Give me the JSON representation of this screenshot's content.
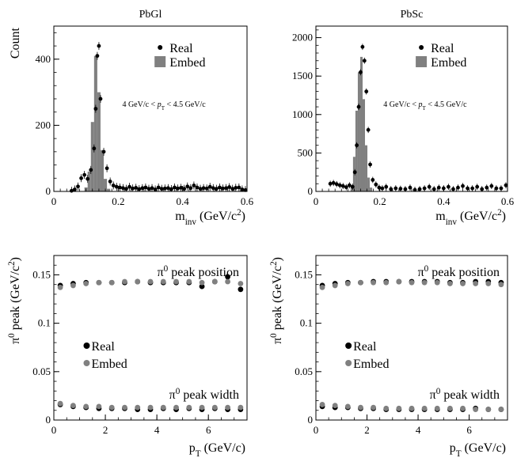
{
  "colors": {
    "real": "#000000",
    "embed": "#808080",
    "axis": "#000000",
    "background": "#ffffff"
  },
  "chart_data": [
    {
      "type": "scatter",
      "subtype": "histogram-with-points",
      "title": "PbGl",
      "xlabel": "m_inv (GeV/c^2)",
      "ylabel": "Count",
      "xlim": [
        0,
        0.6
      ],
      "ylim": [
        0,
        500
      ],
      "xticks": [
        0,
        0.2,
        0.4,
        0.6
      ],
      "xtick_labels": [
        "0",
        "0.2",
        "0.4",
        "0.6"
      ],
      "yticks": [
        0,
        200,
        400
      ],
      "ytick_labels": [
        "0",
        "200",
        "400"
      ],
      "legend": {
        "position": "top-right",
        "entries": [
          "Real",
          "Embed"
        ]
      },
      "annotation": "4 GeV/c < pT < 4.5 GeV/c",
      "series": [
        {
          "name": "Embed",
          "kind": "histogram",
          "bin_width": 0.01,
          "x": [
            0.1,
            0.11,
            0.12,
            0.13,
            0.14,
            0.15,
            0.16,
            0.17
          ],
          "values": [
            12,
            60,
            210,
            410,
            300,
            125,
            38,
            8
          ]
        },
        {
          "name": "Real",
          "kind": "points",
          "x": [
            0.055,
            0.065,
            0.075,
            0.085,
            0.095,
            0.105,
            0.115,
            0.125,
            0.13,
            0.135,
            0.14,
            0.145,
            0.155,
            0.165,
            0.175,
            0.185,
            0.195,
            0.205,
            0.215,
            0.225,
            0.235,
            0.245,
            0.255,
            0.265,
            0.275,
            0.285,
            0.295,
            0.305,
            0.315,
            0.325,
            0.335,
            0.345,
            0.355,
            0.365,
            0.375,
            0.385,
            0.395,
            0.405,
            0.415,
            0.425,
            0.435,
            0.445,
            0.455,
            0.465,
            0.475,
            0.485,
            0.495,
            0.505,
            0.515,
            0.525,
            0.535,
            0.545,
            0.555,
            0.565,
            0.575,
            0.585,
            0.595
          ],
          "y": [
            2,
            6,
            15,
            40,
            50,
            38,
            65,
            130,
            250,
            410,
            440,
            280,
            120,
            70,
            30,
            18,
            14,
            12,
            10,
            8,
            14,
            9,
            11,
            7,
            10,
            12,
            8,
            10,
            6,
            12,
            8,
            9,
            10,
            7,
            12,
            9,
            11,
            8,
            15,
            10,
            18,
            12,
            8,
            10,
            9,
            14,
            10,
            8,
            12,
            9,
            10,
            13,
            8,
            11,
            12,
            6,
            4
          ],
          "error": 12
        }
      ]
    },
    {
      "type": "scatter",
      "subtype": "histogram-with-points",
      "title": "PbSc",
      "xlabel": "m_inv (GeV/c^2)",
      "ylabel": "",
      "xlim": [
        0,
        0.6
      ],
      "ylim": [
        0,
        2150
      ],
      "xticks": [
        0,
        0.2,
        0.4,
        0.6
      ],
      "xtick_labels": [
        "0",
        "0.2",
        "0.4",
        "0.6"
      ],
      "yticks": [
        0,
        500,
        1000,
        1500,
        2000
      ],
      "ytick_labels": [
        "0",
        "500",
        "1000",
        "1500",
        "2000"
      ],
      "legend": {
        "position": "top-right",
        "entries": [
          "Real",
          "Embed"
        ]
      },
      "annotation": "4 GeV/c < pT < 4.5 GeV/c",
      "series": [
        {
          "name": "Embed",
          "kind": "histogram",
          "bin_width": 0.0075,
          "x": [
            0.1125,
            0.12,
            0.1275,
            0.135,
            0.1425,
            0.15,
            0.1575,
            0.165,
            0.1725
          ],
          "values": [
            60,
            450,
            1050,
            1550,
            1750,
            1200,
            600,
            180,
            50
          ]
        },
        {
          "name": "Real",
          "kind": "points",
          "x": [
            0.045,
            0.055,
            0.065,
            0.075,
            0.085,
            0.095,
            0.105,
            0.115,
            0.122,
            0.128,
            0.134,
            0.14,
            0.146,
            0.152,
            0.158,
            0.164,
            0.17,
            0.178,
            0.188,
            0.198,
            0.208,
            0.22,
            0.235,
            0.25,
            0.265,
            0.28,
            0.295,
            0.31,
            0.325,
            0.34,
            0.355,
            0.37,
            0.385,
            0.4,
            0.415,
            0.43,
            0.445,
            0.46,
            0.475,
            0.49,
            0.505,
            0.52,
            0.535,
            0.55,
            0.565,
            0.58,
            0.595
          ],
          "y": [
            100,
            110,
            95,
            80,
            70,
            55,
            80,
            60,
            250,
            600,
            1100,
            1550,
            1880,
            1700,
            1300,
            800,
            350,
            150,
            90,
            50,
            40,
            60,
            30,
            40,
            35,
            30,
            50,
            20,
            30,
            40,
            60,
            30,
            50,
            40,
            60,
            30,
            50,
            70,
            40,
            40,
            60,
            30,
            50,
            70,
            40,
            40,
            80
          ],
          "error": 40
        }
      ]
    },
    {
      "type": "scatter",
      "title": "",
      "xlabel": "p_T (GeV/c)",
      "ylabel": "π^0 peak (GeV/c^2)",
      "xlim": [
        0,
        7.5
      ],
      "ylim": [
        0,
        0.17
      ],
      "xticks": [
        0,
        2,
        4,
        6
      ],
      "xtick_labels": [
        "0",
        "2",
        "4",
        "6"
      ],
      "yticks": [
        0,
        0.05,
        0.1,
        0.15
      ],
      "ytick_labels": [
        "0",
        "0.05",
        "0.1",
        "0.15"
      ],
      "legend": {
        "position": "middle-left",
        "entries": [
          "Real",
          "Embed"
        ]
      },
      "annotations": [
        "π^0 peak position",
        "π^0 peak width"
      ],
      "series": [
        {
          "name": "Real",
          "group": "position",
          "x": [
            0.25,
            0.75,
            1.25,
            1.75,
            2.25,
            2.75,
            3.25,
            3.75,
            4.25,
            4.75,
            5.25,
            5.75,
            6.25,
            6.75,
            7.25
          ],
          "y": [
            0.139,
            0.141,
            0.142,
            0.142,
            0.142,
            0.142,
            0.143,
            0.142,
            0.142,
            0.142,
            0.142,
            0.138,
            0.143,
            0.148,
            0.135
          ]
        },
        {
          "name": "Embed",
          "group": "position",
          "x": [
            0.25,
            0.75,
            1.25,
            1.75,
            2.25,
            2.75,
            3.25,
            3.75,
            4.25,
            4.75,
            5.25,
            5.75,
            6.25,
            6.75,
            7.25
          ],
          "y": [
            0.137,
            0.139,
            0.141,
            0.142,
            0.142,
            0.143,
            0.143,
            0.143,
            0.143,
            0.143,
            0.143,
            0.142,
            0.143,
            0.143,
            0.141
          ]
        },
        {
          "name": "Real",
          "group": "width",
          "x": [
            0.25,
            0.75,
            1.25,
            1.75,
            2.25,
            2.75,
            3.25,
            3.75,
            4.25,
            4.75,
            5.25,
            5.75,
            6.25,
            6.75,
            7.25
          ],
          "y": [
            0.016,
            0.014,
            0.013,
            0.012,
            0.012,
            0.012,
            0.011,
            0.011,
            0.012,
            0.011,
            0.012,
            0.011,
            0.012,
            0.011,
            0.011
          ]
        },
        {
          "name": "Embed",
          "group": "width",
          "x": [
            0.25,
            0.75,
            1.25,
            1.75,
            2.25,
            2.75,
            3.25,
            3.75,
            4.25,
            4.75,
            5.25,
            5.75,
            6.25,
            6.75,
            7.25
          ],
          "y": [
            0.017,
            0.015,
            0.014,
            0.014,
            0.013,
            0.013,
            0.013,
            0.013,
            0.013,
            0.013,
            0.013,
            0.013,
            0.013,
            0.013,
            0.013
          ]
        }
      ]
    },
    {
      "type": "scatter",
      "title": "",
      "xlabel": "p_T (GeV/c)",
      "ylabel": "π^0 peak (GeV/c^2)",
      "xlim": [
        0,
        7.5
      ],
      "ylim": [
        0,
        0.17
      ],
      "xticks": [
        0,
        2,
        4,
        6
      ],
      "xtick_labels": [
        "0",
        "2",
        "4",
        "6"
      ],
      "yticks": [
        0,
        0.05,
        0.1,
        0.15
      ],
      "ytick_labels": [
        "0",
        "0.05",
        "0.1",
        "0.15"
      ],
      "legend": {
        "position": "middle-left",
        "entries": [
          "Real",
          "Embed"
        ]
      },
      "annotations": [
        "π^0 peak position",
        "π^0 peak width"
      ],
      "series": [
        {
          "name": "Real",
          "group": "position",
          "x": [
            0.25,
            0.75,
            1.25,
            1.75,
            2.25,
            2.75,
            3.25,
            3.75,
            4.25,
            4.75,
            5.25,
            5.75,
            6.25,
            6.75,
            7.25
          ],
          "y": [
            0.139,
            0.141,
            0.142,
            0.142,
            0.143,
            0.143,
            0.143,
            0.143,
            0.143,
            0.143,
            0.142,
            0.142,
            0.143,
            0.143,
            0.142
          ]
        },
        {
          "name": "Embed",
          "group": "position",
          "x": [
            0.25,
            0.75,
            1.25,
            1.75,
            2.25,
            2.75,
            3.25,
            3.75,
            4.25,
            4.75,
            5.25,
            5.75,
            6.25,
            6.75,
            7.25
          ],
          "y": [
            0.137,
            0.139,
            0.141,
            0.142,
            0.142,
            0.142,
            0.143,
            0.142,
            0.142,
            0.142,
            0.141,
            0.141,
            0.141,
            0.141,
            0.14
          ]
        },
        {
          "name": "Real",
          "group": "width",
          "x": [
            0.25,
            0.75,
            1.25,
            1.75,
            2.25,
            2.75,
            3.25,
            3.75,
            4.25,
            4.75,
            5.25,
            5.75,
            6.25,
            6.75,
            7.25
          ],
          "y": [
            0.014,
            0.013,
            0.013,
            0.012,
            0.012,
            0.011,
            0.011,
            0.011,
            0.011,
            0.011,
            0.011,
            0.011,
            0.012,
            0.011,
            0.011
          ]
        },
        {
          "name": "Embed",
          "group": "width",
          "x": [
            0.25,
            0.75,
            1.25,
            1.75,
            2.25,
            2.75,
            3.25,
            3.75,
            4.25,
            4.75,
            5.25,
            5.75,
            6.25,
            6.75,
            7.25
          ],
          "y": [
            0.016,
            0.015,
            0.014,
            0.013,
            0.013,
            0.012,
            0.012,
            0.012,
            0.012,
            0.012,
            0.012,
            0.012,
            0.011,
            0.011,
            0.011
          ]
        }
      ]
    }
  ]
}
